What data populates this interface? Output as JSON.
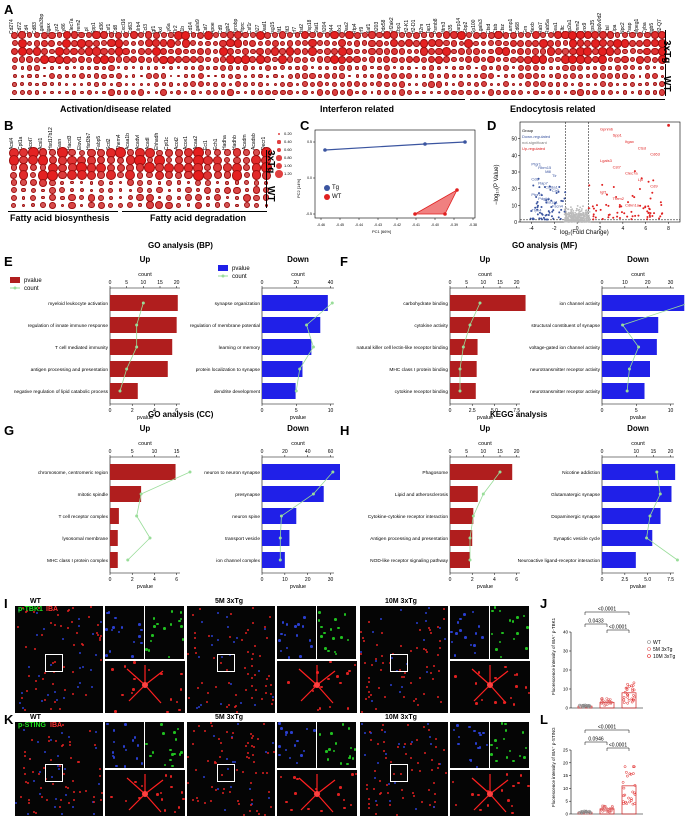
{
  "panels": {
    "A": {
      "letter": "A",
      "genes": [
        "Cd274",
        "Cd72",
        "Cd4",
        "Cd83",
        "Lgals3bp",
        "Itgax",
        "Lyz2",
        "Ly86",
        "Clec7a",
        "Trem2",
        "Lpl",
        "Spp1",
        "Cd36",
        "Csf1",
        "Cd8",
        "Cxcl16",
        "Cd63",
        "Lilrb4",
        "Ccl3",
        "Igf1",
        "Axl",
        "Ly6a",
        "Tlr2",
        "Il1b",
        "Cd14",
        "Lgals9",
        "Cst7",
        "Apoe",
        "Cd9",
        "Itgb2",
        "Tyrobp",
        "Ptprc",
        "Csf1r",
        "Ifi27",
        "Oasl1",
        "Isg15",
        "Ifit1",
        "Ifit3",
        "Irf7",
        "Bst2",
        "Usp18",
        "Stat1",
        "Ifi204",
        "Ifi44",
        "Mx1",
        "Oas2",
        "Rtp4",
        "Irf9",
        "Xaf1",
        "Ifi203",
        "Ddx58",
        "Eif2ak2",
        "Zbp1",
        "H2-K1",
        "H2-D1",
        "B2m",
        "Tap1",
        "Psmb8",
        "Ifitm3",
        "Ifi35",
        "Parp14",
        "Gbp2",
        "Sp100",
        "Lgals3",
        "Ctsd",
        "Ctsb",
        "Ctsz",
        "Lamp1",
        "Cd68",
        "Grn",
        "Hexb",
        "Rab7",
        "Rab5a",
        "Eea1",
        "Cltc",
        "Ap2a1",
        "Dnm2",
        "Snx9",
        "Vps35",
        "Atp6v0d2",
        "Ctsl",
        "Lipa",
        "Npc2",
        "Psap",
        "Mpeg1",
        "Cyba",
        "Itgb5",
        "H2-Q7"
      ],
      "group_labels": [
        "Activation/disease related",
        "Interferon related",
        "Endocytosis related"
      ],
      "row_labels": [
        "3xTg",
        "WT"
      ]
    },
    "B": {
      "letter": "B",
      "genes": [
        "Acsl4",
        "Cpt1a",
        "Acot7",
        "Acsl1",
        "Hsd17b12",
        "Fasn",
        "Hacd3",
        "Elovl1",
        "Hsd3b7",
        "Fabp5",
        "Scd2",
        "Them4",
        "Acaa1b",
        "Acadvl",
        "Acadl",
        "Ehhadh",
        "Cpt1c",
        "Acot2",
        "Acox1",
        "Acaa2",
        "Eci1",
        "Ech1",
        "Hadha",
        "Hadhb",
        "Acadm",
        "Acadsb",
        "Decr1"
      ],
      "legend_title": "",
      "legend_values": [
        "0.20",
        "0.40",
        "0.60",
        "0.80",
        "1.00",
        "1.20"
      ],
      "group_labels": [
        "Fatty acid biosynthesis",
        "Fatty acid degradation"
      ],
      "row_labels": [
        "3xTg",
        "WT"
      ]
    },
    "C": {
      "letter": "C",
      "xlabel": "PC1 [66%]",
      "ylabel": "PC2 [14%]",
      "xticks": [
        "-0.46",
        "-0.45",
        "-0.44",
        "-0.43",
        "-0.42",
        "-0.41",
        "-0.40",
        "-0.39",
        "-0.38"
      ],
      "yticks": [
        "0.5",
        "0.0",
        "-0.5"
      ],
      "legend": [
        "Tg",
        "WT"
      ],
      "colors": {
        "tg": "#3b55a0",
        "wt": "#e02020"
      }
    },
    "D": {
      "letter": "D",
      "xlabel": "log₂(Fold Change)",
      "ylabel": "−log₁₀(P Value)",
      "xticks": [
        "-4",
        "-2",
        "0",
        "2",
        "4",
        "6",
        "8"
      ],
      "yticks": [
        "0",
        "10",
        "20",
        "30",
        "40",
        "50"
      ],
      "legend_title": "Group",
      "legend": [
        "Down-regulated",
        "not-significant",
        "Up-regulated"
      ],
      "down_labels": [
        "Ptgr1",
        "Rbm15",
        "Mill",
        "Tlr",
        "Cd8",
        "Rap7",
        "Col8a1",
        "Cir5",
        "Ptpn4",
        "Pdgfrb",
        "Col1a1",
        "Fscn4",
        "Ttyh4"
      ],
      "up_labels": [
        "Gpnmb",
        "Spp1",
        "Itgax",
        "Ctsd",
        "Cd63",
        "Lgals3",
        "Cst7",
        "Clec7a",
        "Lpl",
        "Cd9",
        "Igf1",
        "Trem2",
        "Cdkn1a"
      ]
    },
    "E": {
      "letter": "E",
      "title": "GO analysis (BP)",
      "left_title": "Up",
      "right_title": "Down",
      "axis_top": "count",
      "axis_bottom": "pvalue",
      "legend": [
        "pvalue",
        "count"
      ],
      "up_terms": [
        "myeloid leukocyte activation",
        "regulation of innate immune response",
        "T cell mediated immunity",
        "antigen processing and presentation",
        "negative regulation of lipid catabolic process"
      ],
      "up_pvalue": [
        6.1,
        6.0,
        5.6,
        5.2,
        2.5
      ],
      "up_count": [
        10,
        8,
        8,
        5,
        3
      ],
      "up_xticks": [
        "0",
        "2",
        "4",
        "6"
      ],
      "up_cticks": [
        "0",
        "5",
        "10",
        "15",
        "20"
      ],
      "down_terms": [
        "synapse organization",
        "regulation of membrane potential",
        "learning or memory",
        "protein localization to synapse",
        "dendrite development"
      ],
      "down_pvalue": [
        9.6,
        8.5,
        7.2,
        5.9,
        4.9
      ],
      "down_count": [
        41,
        26,
        30,
        22,
        20
      ],
      "down_xticks": [
        "0",
        "5",
        "10"
      ],
      "down_cticks": [
        "0",
        "20",
        "40"
      ]
    },
    "F": {
      "letter": "F",
      "title": "GO analysis (MF)",
      "left_title": "Up",
      "right_title": "Down",
      "axis_bottom": "pvalue",
      "axis_top": "count",
      "up_terms": [
        "carbohydrate binding",
        "cytokine activity",
        "natural killer cell lectin-like receptor binding",
        "MHC class I protein binding",
        "cytokine receptor binding"
      ],
      "up_pvalue": [
        8.5,
        4.5,
        3.1,
        3.0,
        2.9
      ],
      "up_count": [
        9,
        6,
        4,
        3,
        3
      ],
      "up_xticks": [
        "0",
        "2.5",
        "5.0",
        "7.5"
      ],
      "up_cticks": [
        "0",
        "5",
        "10",
        "15",
        "20"
      ],
      "down_terms": [
        "ion channel activity",
        "structural constituent of synapse",
        "voltage-gated ion channel activity",
        "neurotransmitter receptor activity",
        "neurotransmitter receptor activity"
      ],
      "down_pvalue": [
        12.0,
        8.2,
        8.0,
        7.0,
        6.2
      ],
      "down_count": [
        38,
        9,
        16,
        12,
        11
      ],
      "down_xticks": [
        "0",
        "5",
        "10"
      ],
      "down_cticks": [
        "0",
        "10",
        "20",
        "30"
      ]
    },
    "G": {
      "letter": "G",
      "title": "GO analysis (CC)",
      "left_title": "Up",
      "right_title": "Down",
      "axis_bottom": "pvalue",
      "axis_top": "count",
      "up_terms": [
        "chromosome, centromeric region",
        "mitotic spindle",
        "T cell receptor complex",
        "lysosomal membrane",
        "MHC class I protein complex"
      ],
      "up_pvalue": [
        5.9,
        2.8,
        0.8,
        0.7,
        0.7
      ],
      "up_count": [
        18,
        7,
        6,
        9,
        4
      ],
      "up_xticks": [
        "0",
        "2",
        "4",
        "6"
      ],
      "up_cticks": [
        "0",
        "5",
        "10",
        "15"
      ],
      "down_terms": [
        "neuron to neuron synapse",
        "presynapse",
        "neuron spine",
        "transport vesicle",
        "ion channel complex"
      ],
      "down_pvalue": [
        36,
        27,
        15,
        12,
        10
      ],
      "down_count": [
        62,
        45,
        17,
        16,
        16
      ],
      "down_xticks": [
        "0",
        "10",
        "20",
        "30"
      ],
      "down_cticks": [
        "0",
        "20",
        "40",
        "60"
      ]
    },
    "H": {
      "letter": "H",
      "title": "KEGG analysis",
      "left_title": "Up",
      "right_title": "Down",
      "axis_bottom": "pvalue",
      "axis_top": "count",
      "up_terms": [
        "Phagosome",
        "Lipid and atherosclerosis",
        "Cytokine-cytokine receptor interaction",
        "Antigen processing and presentation",
        "NOD-like receptor signaling pathway"
      ],
      "up_pvalue": [
        5.6,
        2.5,
        2.1,
        2.0,
        1.8
      ],
      "up_count": [
        15,
        10,
        7,
        6,
        6
      ],
      "up_xticks": [
        "0",
        "2",
        "4",
        "6"
      ],
      "up_cticks": [
        "0",
        "5",
        "10",
        "15",
        "20"
      ],
      "down_terms": [
        "Nicotine addiction",
        "Glutamatergic synapse",
        "Dopaminergic synapse",
        "Synaptic vesicle cycle",
        "Neuroactive ligand-receptor interaction"
      ],
      "down_pvalue": [
        8.0,
        7.6,
        6.4,
        5.5,
        3.7
      ],
      "down_count": [
        16,
        17,
        14,
        13,
        22
      ],
      "down_xticks": [
        "0",
        "2.5",
        "5.0",
        "7.5"
      ],
      "down_cticks": [
        "0",
        "10",
        "15",
        "20"
      ]
    },
    "I": {
      "letter": "I",
      "label": "p-TBK1",
      "label2": "IBA",
      "wt": "WT",
      "m5": "5M 3xTg",
      "m10": "10M 3xTg",
      "scale": "20 µm"
    },
    "J": {
      "letter": "J",
      "ylabel": "Fluorescence intensity of IBA⁺ p-TBK1",
      "p_values": [
        "<0.0001",
        "0.0433",
        "<0.0001"
      ],
      "legend": [
        "WT",
        "5M 3xTg",
        "10M 3xTg"
      ],
      "yticks": [
        "0",
        "10",
        "20",
        "30",
        "40"
      ],
      "bars": [
        1.0,
        3.0,
        8.0
      ]
    },
    "K": {
      "letter": "K",
      "label": "p-STING",
      "label2": "IBA",
      "wt": "WT",
      "m5": "5M 3xTg",
      "m10": "10M 3xTg",
      "scale": "20 µm"
    },
    "L": {
      "letter": "L",
      "ylabel": "Fluorescence intensity of IBA⁺ p-STING",
      "p_values": [
        "<0.0001",
        "0.0946",
        "<0.0001"
      ],
      "yticks": [
        "0",
        "5",
        "10",
        "15",
        "20",
        "25"
      ],
      "bars": [
        0.7,
        2.0,
        11.0
      ]
    }
  }
}
